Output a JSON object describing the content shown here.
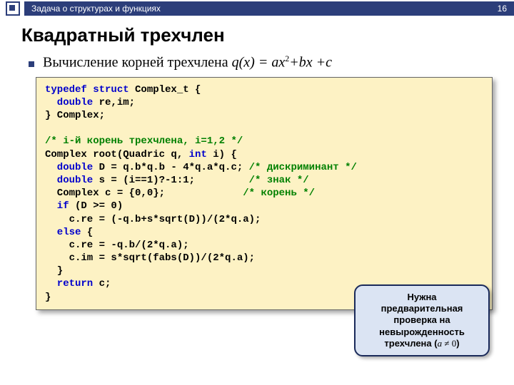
{
  "header": {
    "breadcrumb": "Задача о структурах и функциях",
    "page_number": "16"
  },
  "title": "Квадратный трехчлен",
  "bullet": {
    "prefix": "Вычисление корней трехчлена ",
    "formula_q": "q",
    "formula_x": "(x) = ",
    "formula_a": "ax",
    "formula_sup": "2",
    "formula_bx": "+bx +c"
  },
  "code": {
    "l1a": "typedef struct",
    "l1b": " Complex_t {",
    "l2a": "  double",
    "l2b": " re,im;",
    "l3": "} Complex;",
    "l4": "",
    "l5": "/* i-й корень трехчлена, i=1,2 */",
    "l6a": "Complex root(Quadric q, ",
    "l6b": "int",
    "l6c": " i) {",
    "l7a": "  double",
    "l7b": " D = q.b*q.b - 4*q.a*q.c; ",
    "l7c": "/* дискриминант */",
    "l8a": "  double",
    "l8b": " s = (i==1)?-1:1;         ",
    "l8c": "/* знак */",
    "l9a": "  Complex c = {0,0};             ",
    "l9b": "/* корень */",
    "l10a": "  if",
    "l10b": " (D >= 0)",
    "l11": "    c.re = (-q.b+s*sqrt(D))/(2*q.a);",
    "l12a": "  else",
    "l12b": " {",
    "l13": "    c.re = -q.b/(2*q.a);",
    "l14": "    c.im = s*sqrt(fabs(D))/(2*q.a);",
    "l15": "  }",
    "l16a": "  return",
    "l16b": " c;",
    "l17": "}"
  },
  "callout": {
    "line1": "Нужна",
    "line2": "предварительная",
    "line3": "проверка на",
    "line4": "невырожденность",
    "line5_a": "трехчлена (",
    "cond_a": "a",
    "cond_ne": " ≠ 0",
    "line5_b": ")"
  },
  "colors": {
    "header_bg": "#2c3e7a",
    "code_bg": "#fdf2c4",
    "keyword": "#0000cc",
    "comment": "#008000",
    "callout_bg": "#dbe4f3",
    "callout_border": "#1a2a5a"
  }
}
